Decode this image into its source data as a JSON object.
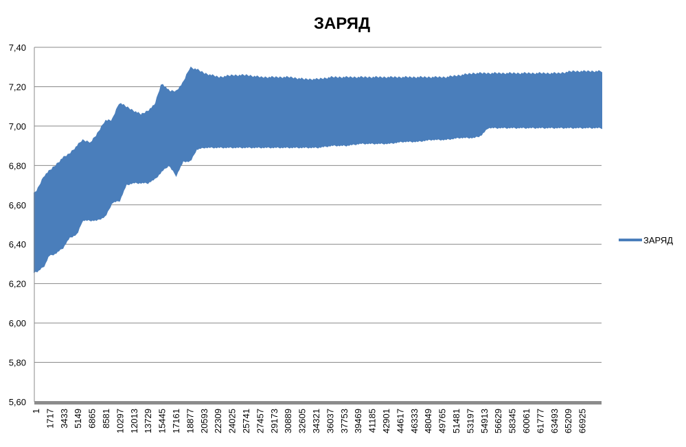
{
  "chart_data": {
    "type": "area",
    "title": "ЗАРЯД",
    "xlabel": "",
    "ylabel": "",
    "ylim": [
      5.6,
      7.4
    ],
    "y_ticks": [
      "5,60",
      "5,80",
      "6,00",
      "6,20",
      "6,40",
      "6,60",
      "6,80",
      "7,00",
      "7,20",
      "7,40"
    ],
    "y_tick_values": [
      5.6,
      5.8,
      6.0,
      6.2,
      6.4,
      6.6,
      6.8,
      7.0,
      7.2,
      7.4
    ],
    "xlim": [
      1,
      68641
    ],
    "x_ticks": [
      "1",
      "1717",
      "3433",
      "5149",
      "6865",
      "8581",
      "10297",
      "12013",
      "13729",
      "15445",
      "17161",
      "18877",
      "20593",
      "22309",
      "24025",
      "25741",
      "27457",
      "29173",
      "30889",
      "32605",
      "34321",
      "36037",
      "37753",
      "39469",
      "41185",
      "42901",
      "44617",
      "46333",
      "48049",
      "49765",
      "51481",
      "53197",
      "54913",
      "56629",
      "58345",
      "60061",
      "61777",
      "63493",
      "65209",
      "66925"
    ],
    "grid": true,
    "legend_position": "right",
    "color": "#4a7ebb",
    "series": [
      {
        "name": "ЗАРЯД",
        "envelope": {
          "x": [
            1,
            400,
            1200,
            1717,
            2500,
            3433,
            4200,
            5149,
            5800,
            6865,
            7600,
            8581,
            9400,
            10297,
            11100,
            12013,
            12900,
            13729,
            14600,
            15445,
            16300,
            17161,
            18000,
            18877,
            19600,
            20593,
            22309,
            24025,
            25741,
            27457,
            29173,
            30889,
            32605,
            34321,
            36037,
            37753,
            39469,
            41185,
            42901,
            44617,
            46333,
            48049,
            49765,
            51481,
            53197,
            54000,
            54913,
            56629,
            58345,
            60061,
            61777,
            63493,
            65209,
            66925,
            68641
          ],
          "high": [
            6.66,
            6.68,
            6.75,
            6.77,
            6.8,
            6.84,
            6.86,
            6.9,
            6.93,
            6.92,
            6.96,
            7.03,
            7.03,
            7.12,
            7.1,
            7.08,
            7.06,
            7.08,
            7.11,
            7.22,
            7.18,
            7.18,
            7.22,
            7.3,
            7.29,
            7.27,
            7.25,
            7.26,
            7.26,
            7.25,
            7.25,
            7.25,
            7.24,
            7.24,
            7.25,
            7.25,
            7.25,
            7.25,
            7.25,
            7.25,
            7.25,
            7.25,
            7.25,
            7.26,
            7.27,
            7.27,
            7.27,
            7.27,
            7.27,
            7.27,
            7.27,
            7.27,
            7.28,
            7.28,
            7.28
          ],
          "low": [
            6.26,
            6.26,
            6.29,
            6.34,
            6.35,
            6.38,
            6.43,
            6.45,
            6.52,
            6.52,
            6.52,
            6.54,
            6.61,
            6.62,
            6.7,
            6.71,
            6.71,
            6.71,
            6.73,
            6.77,
            6.8,
            6.75,
            6.82,
            6.82,
            6.88,
            6.89,
            6.89,
            6.89,
            6.89,
            6.89,
            6.89,
            6.89,
            6.89,
            6.89,
            6.9,
            6.9,
            6.91,
            6.91,
            6.91,
            6.92,
            6.92,
            6.93,
            6.93,
            6.94,
            6.94,
            6.95,
            6.99,
            6.99,
            6.99,
            6.99,
            6.99,
            6.99,
            6.99,
            6.99,
            6.99
          ]
        }
      }
    ]
  }
}
